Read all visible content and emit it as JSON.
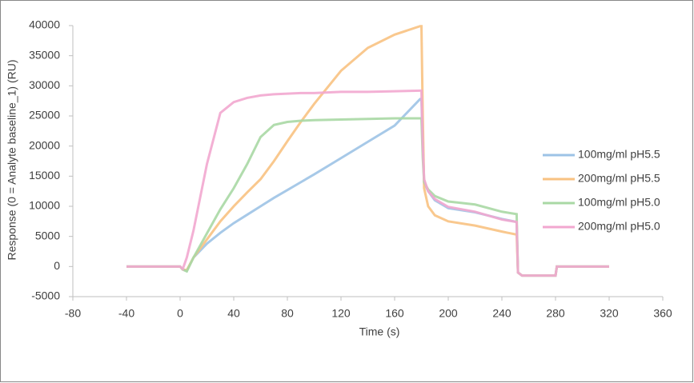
{
  "chart_data": {
    "type": "line",
    "x_label": "Time  (s)",
    "y_label": "Response  (0 = Analyte baseline_1)  (RU)",
    "x": [
      -40,
      0,
      2,
      5,
      10,
      20,
      30,
      40,
      50,
      60,
      70,
      80,
      90,
      100,
      120,
      140,
      160,
      179,
      180,
      181,
      182,
      185,
      190,
      200,
      220,
      240,
      251,
      252,
      255,
      280,
      281,
      320
    ],
    "series": [
      {
        "name": "100mg/ml pH5.5",
        "color": "#9dc3e6",
        "values": [
          0,
          0,
          -500,
          -700,
          1500,
          3800,
          5600,
          7200,
          8600,
          10000,
          11400,
          12700,
          14000,
          15300,
          18000,
          20700,
          23400,
          27800,
          27800,
          20000,
          14000,
          12500,
          11000,
          9700,
          9000,
          7900,
          7400,
          -1000,
          -1500,
          -1500,
          0,
          0
        ]
      },
      {
        "name": "200mg/ml pH5.5",
        "color": "#f8c282",
        "values": [
          0,
          0,
          -500,
          -600,
          1500,
          4500,
          7500,
          10000,
          12300,
          14500,
          17500,
          20800,
          24000,
          27000,
          32500,
          36300,
          38500,
          39900,
          39900,
          25000,
          13000,
          10000,
          8500,
          7500,
          6800,
          5800,
          5300,
          -1000,
          -1500,
          -1500,
          0,
          0
        ]
      },
      {
        "name": "100mg/ml pH5.0",
        "color": "#a9d8a4",
        "values": [
          0,
          0,
          -500,
          -800,
          1500,
          5500,
          9500,
          13000,
          17000,
          21500,
          23500,
          24000,
          24200,
          24300,
          24400,
          24500,
          24600,
          24600,
          24600,
          18000,
          14000,
          12800,
          11700,
          10800,
          10300,
          9100,
          8700,
          -1000,
          -1500,
          -1500,
          0,
          0
        ]
      },
      {
        "name": "200mg/ml pH5.0",
        "color": "#f2a7cf",
        "values": [
          0,
          0,
          -400,
          1500,
          6000,
          17000,
          25500,
          27300,
          28000,
          28400,
          28600,
          28700,
          28800,
          28800,
          29000,
          29000,
          29100,
          29200,
          29200,
          20000,
          14500,
          12500,
          11200,
          9900,
          9100,
          7800,
          7400,
          -1000,
          -1500,
          -1500,
          0,
          0
        ]
      }
    ],
    "xlim": [
      -80,
      360
    ],
    "xticks": [
      -80,
      -40,
      0,
      40,
      80,
      120,
      160,
      200,
      240,
      280,
      320,
      360
    ],
    "ylim": [
      -5000,
      40000
    ],
    "yticks": [
      -5000,
      0,
      5000,
      10000,
      15000,
      20000,
      25000,
      30000,
      35000,
      40000
    ],
    "grid": false,
    "legend": "right"
  }
}
